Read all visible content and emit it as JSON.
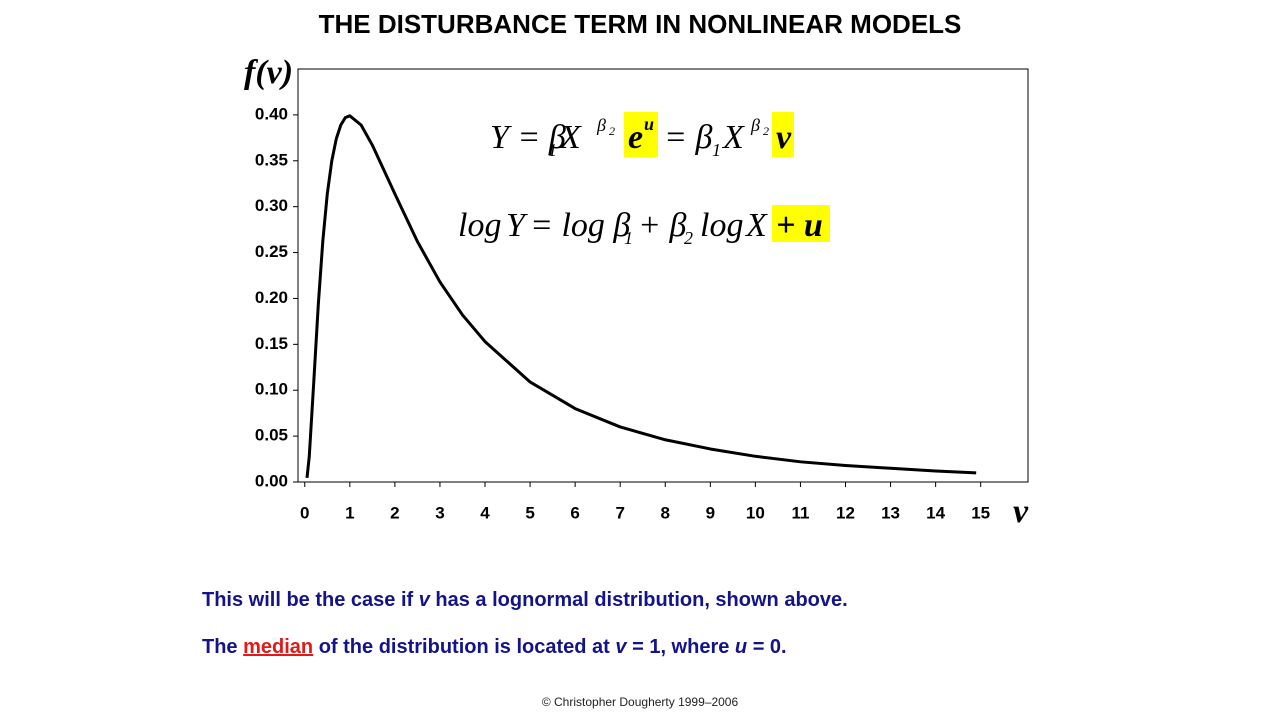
{
  "title": "THE DISTURBANCE TERM IN NONLINEAR MODELS",
  "chart_data": {
    "type": "line",
    "y_label": "f(v)",
    "x_label": "v",
    "x": [
      0.05,
      0.1,
      0.2,
      0.3,
      0.4,
      0.5,
      0.6,
      0.7,
      0.8,
      0.9,
      1,
      1.25,
      1.5,
      2,
      2.5,
      3,
      3.5,
      4,
      5,
      6,
      7,
      8,
      9,
      10,
      11,
      12,
      13,
      14,
      14.9
    ],
    "series": [
      {
        "color": "#000000",
        "values": [
          0.0045,
          0.028,
          0.109,
          0.193,
          0.262,
          0.314,
          0.35,
          0.374,
          0.389,
          0.397,
          0.399,
          0.389,
          0.367,
          0.314,
          0.262,
          0.218,
          0.182,
          0.153,
          0.109,
          0.08,
          0.06,
          0.046,
          0.036,
          0.028,
          0.022,
          0.018,
          0.015,
          0.012,
          0.01
        ]
      }
    ],
    "xlim": [
      -0.15,
      16.05
    ],
    "ylim": [
      0,
      0.45
    ],
    "xticks": [
      0,
      1,
      2,
      3,
      4,
      5,
      6,
      7,
      8,
      9,
      10,
      11,
      12,
      13,
      14,
      15
    ],
    "yticks": [
      {
        "value": 0,
        "label": "0.00"
      },
      {
        "value": 0.05,
        "label": "0.05"
      },
      {
        "value": 0.1,
        "label": "0.10"
      },
      {
        "value": 0.15,
        "label": "0.15"
      },
      {
        "value": 0.2,
        "label": "0.20"
      },
      {
        "value": 0.25,
        "label": "0.25"
      },
      {
        "value": 0.3,
        "label": "0.30"
      },
      {
        "value": 0.35,
        "label": "0.35"
      },
      {
        "value": 0.4,
        "label": "0.40"
      }
    ],
    "grid": false,
    "equations": [
      [
        "Y = β",
        "1",
        "X",
        "β",
        "2",
        "e",
        "u",
        "= β",
        "1",
        "X",
        "β",
        "2",
        "v"
      ],
      [
        "log",
        "Y",
        "= log β",
        "1",
        "+ β",
        "2",
        "log",
        "X",
        "+ u"
      ]
    ]
  },
  "caption": [
    [
      "This will be the case if ",
      "v",
      " has a lognormal distribution, shown above."
    ],
    [
      "The ",
      "median",
      " of the distribution is located at ",
      "v",
      " = 1, where ",
      "u",
      " = 0."
    ]
  ],
  "footer": "© Christopher Dougherty 1999–2006"
}
